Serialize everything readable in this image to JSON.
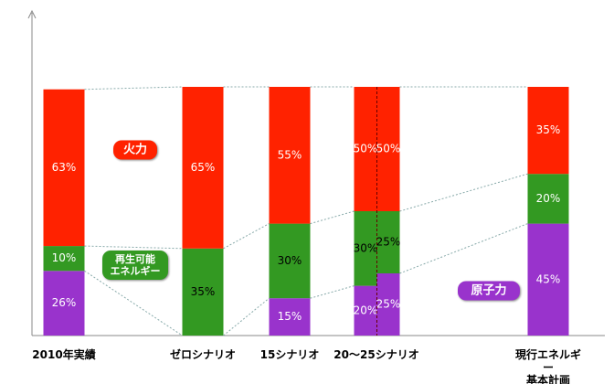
{
  "chart_data": {
    "type": "stacked-bar",
    "categories": [
      "2010年実績",
      "ゼロシナリオ",
      "15シナリオ",
      "20～25シナリオ",
      null,
      "現行エネルギー\n基本計画"
    ],
    "series": [
      {
        "name": "原子力",
        "color": "#9933cc",
        "values": [
          26,
          null,
          15,
          20,
          25,
          45
        ],
        "value_labels": [
          "26%",
          null,
          "15%",
          "20%",
          "25%",
          "45%"
        ]
      },
      {
        "name": "再生可能\nエネルギー",
        "color": "#339922",
        "values": [
          10,
          35,
          30,
          30,
          25,
          20
        ],
        "value_labels": [
          "10%",
          "35%",
          "30%",
          "30%",
          "25%",
          "20%"
        ]
      },
      {
        "name": "火力",
        "color": "#ff2200",
        "values": [
          63,
          65,
          55,
          50,
          50,
          35
        ],
        "value_labels": [
          "63%",
          "65%",
          "55%",
          "50%",
          "50%",
          "35%"
        ]
      }
    ]
  }
}
